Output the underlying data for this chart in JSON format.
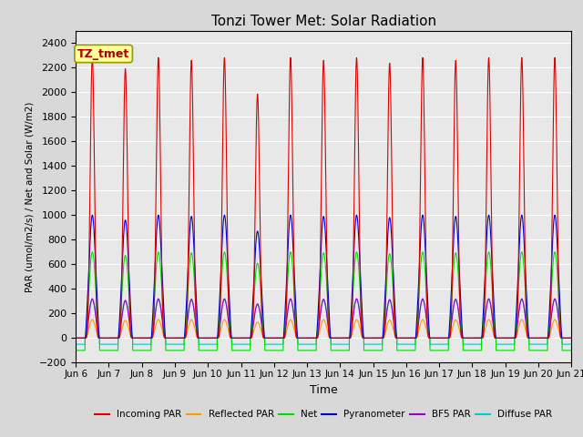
{
  "title": "Tonzi Tower Met: Solar Radiation",
  "ylabel": "PAR (umol/m2/s) / Net and Solar (W/m2)",
  "xlabel": "Time",
  "tz_label": "TZ_tmet",
  "ylim": [
    -200,
    2500
  ],
  "yticks": [
    -200,
    0,
    200,
    400,
    600,
    800,
    1000,
    1200,
    1400,
    1600,
    1800,
    2000,
    2200,
    2400
  ],
  "xtick_labels": [
    "Jun 6",
    "Jun 7",
    "Jun 8",
    "Jun 9",
    "Jun 10",
    "Jun 11",
    "Jun 12",
    "Jun 13",
    "Jun 14",
    "Jun 15",
    "Jun 16",
    "Jun 17",
    "Jun 18",
    "Jun 19",
    "Jun 20",
    "Jun 21"
  ],
  "xtick_positions": [
    6,
    7,
    8,
    9,
    10,
    11,
    12,
    13,
    14,
    15,
    16,
    17,
    18,
    19,
    20,
    21
  ],
  "colors": {
    "incoming_par": "#dd0000",
    "reflected_par": "#ff9900",
    "net": "#00dd00",
    "pyranometer": "#0000cc",
    "bf5_par": "#9900cc",
    "diffuse_par": "#00cccc"
  },
  "legend": [
    "Incoming PAR",
    "Reflected PAR",
    "Net",
    "Pyranometer",
    "BF5 PAR",
    "Diffuse PAR"
  ],
  "background_color": "#d8d8d8",
  "plot_background": "#e8e8e8",
  "grid_color": "#ffffff",
  "n_days": 15,
  "start_day": 6,
  "incoming_par_max": 2280,
  "reflected_par_max": 150,
  "net_max": 700,
  "pyranometer_max": 1000,
  "bf5_par_max": 320,
  "diffuse_par_max": 310,
  "net_min": -100,
  "diffuse_par_min": -50,
  "day_variation": [
    1.0,
    0.96,
    1.0,
    0.99,
    1.0,
    0.87,
    1.0,
    0.99,
    1.0,
    0.98,
    1.0,
    0.99,
    1.0,
    1.0,
    1.0
  ]
}
